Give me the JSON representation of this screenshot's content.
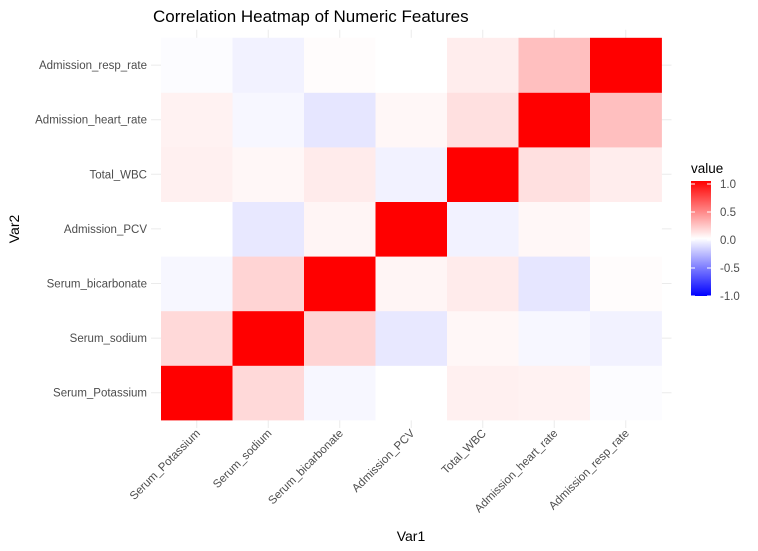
{
  "chart_data": {
    "type": "heatmap",
    "title": "Correlation Heatmap of Numeric Features",
    "xlabel": "Var1",
    "ylabel": "Var2",
    "x_categories": [
      "Serum_Potassium",
      "Serum_sodium",
      "Serum_bicarbonate",
      "Admission_PCV",
      "Total_WBC",
      "Admission_heart_rate",
      "Admission_resp_rate"
    ],
    "y_categories": [
      "Serum_Potassium",
      "Serum_sodium",
      "Serum_bicarbonate",
      "Admission_PCV",
      "Total_WBC",
      "Admission_heart_rate",
      "Admission_resp_rate"
    ],
    "matrix": [
      [
        1.0,
        0.15,
        -0.03,
        0.0,
        0.06,
        0.05,
        -0.01
      ],
      [
        0.15,
        1.0,
        0.17,
        -0.09,
        0.03,
        -0.03,
        -0.05
      ],
      [
        -0.03,
        0.17,
        1.0,
        0.04,
        0.08,
        -0.1,
        0.01
      ],
      [
        0.0,
        -0.09,
        0.04,
        1.0,
        -0.05,
        0.03,
        0.0
      ],
      [
        0.06,
        0.03,
        0.08,
        -0.05,
        1.0,
        0.12,
        0.07
      ],
      [
        0.05,
        -0.03,
        -0.1,
        0.03,
        0.12,
        1.0,
        0.25
      ],
      [
        -0.01,
        -0.05,
        0.01,
        0.0,
        0.07,
        0.25,
        1.0
      ]
    ],
    "legend": {
      "title": "value",
      "breaks": [
        "1.0",
        "0.5",
        "0.0",
        "-0.5",
        "-1.0"
      ],
      "limits": [
        -1,
        1
      ],
      "position": "right"
    },
    "colors": {
      "high": "#ff0000",
      "mid": "#ffffff",
      "low": "#0000ff"
    },
    "grid": true
  }
}
